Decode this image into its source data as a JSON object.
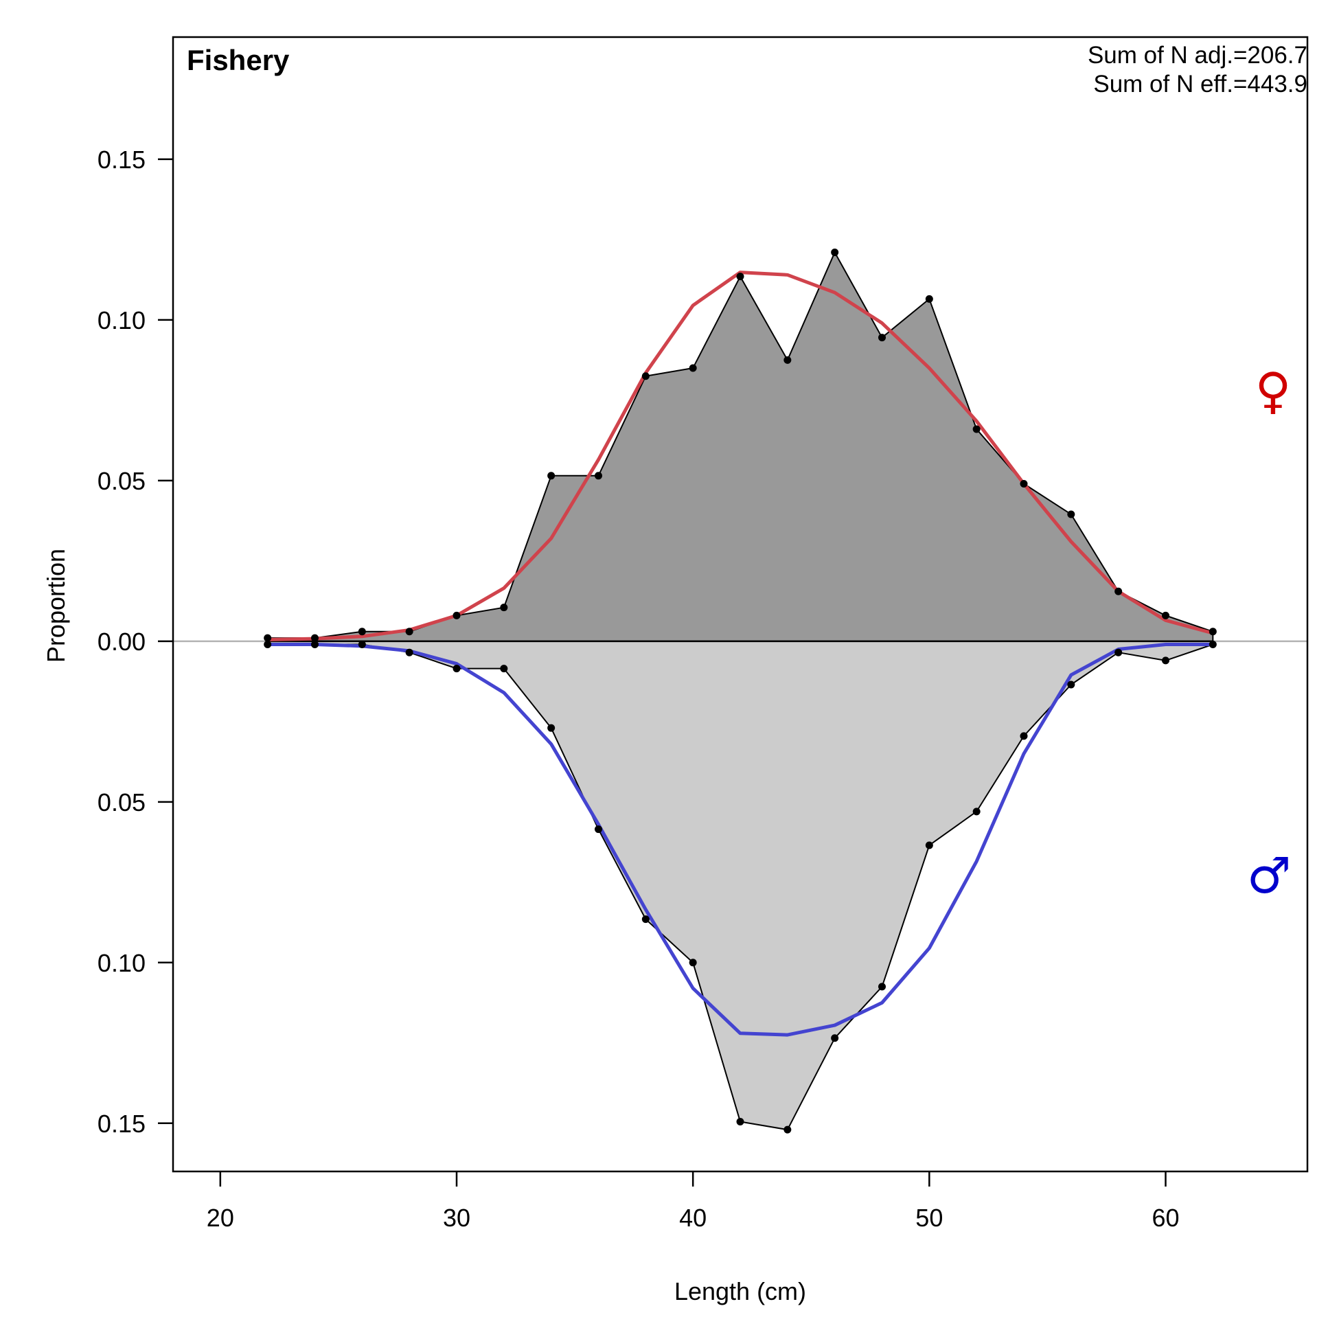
{
  "colors": {
    "female_fill": "#999999",
    "male_fill": "#cccccc",
    "female_expected": "#d0434c",
    "male_expected": "#4444d0",
    "zero_line": "#b3b3b3",
    "female_symbol": "#d00000",
    "male_symbol": "#0000cc"
  },
  "chart_data": {
    "type": "area",
    "title": "Fishery",
    "xlabel": "Length (cm)",
    "ylabel": "Proportion",
    "annotations": [
      "Sum of N adj.=206.7",
      "Sum of N eff.=443.9"
    ],
    "xlim": [
      18,
      66
    ],
    "ylim": [
      -0.165,
      0.188
    ],
    "x_ticks": [
      20,
      30,
      40,
      50,
      60
    ],
    "x_tick_labels": [
      "20",
      "30",
      "40",
      "50",
      "60"
    ],
    "y_ticks": [
      0.15,
      0.1,
      0.05,
      0.0,
      -0.05,
      -0.1,
      -0.15
    ],
    "y_tick_labels": [
      "0.15",
      "0.10",
      "0.05",
      "0.00",
      "0.05",
      "0.10",
      "0.15"
    ],
    "grid": false,
    "x": [
      22,
      24,
      26,
      28,
      30,
      32,
      34,
      36,
      38,
      40,
      42,
      44,
      46,
      48,
      50,
      52,
      54,
      56,
      58,
      60,
      62
    ],
    "series": [
      {
        "name": "♀",
        "observed": [
          0.001,
          0.001,
          0.003,
          0.003,
          0.008,
          0.0105,
          0.0515,
          0.0515,
          0.0825,
          0.085,
          0.1135,
          0.0875,
          0.121,
          0.0945,
          0.1065,
          0.066,
          0.049,
          0.0395,
          0.0155,
          0.008,
          0.003
        ],
        "expected": [
          0.0005,
          0.0008,
          0.0015,
          0.0035,
          0.008,
          0.0165,
          0.032,
          0.0565,
          0.0835,
          0.1045,
          0.1148,
          0.114,
          0.1085,
          0.099,
          0.085,
          0.0685,
          0.049,
          0.031,
          0.0155,
          0.0065,
          0.0025
        ]
      },
      {
        "name": "♂",
        "observed": [
          -0.001,
          -0.001,
          -0.001,
          -0.0035,
          -0.0085,
          -0.0085,
          -0.027,
          -0.0585,
          -0.0865,
          -0.1,
          -0.1495,
          -0.152,
          -0.1235,
          -0.1075,
          -0.0635,
          -0.053,
          -0.0295,
          -0.0135,
          -0.0035,
          -0.006,
          -0.001
        ],
        "expected": [
          -0.001,
          -0.001,
          -0.0015,
          -0.003,
          -0.007,
          -0.016,
          -0.032,
          -0.057,
          -0.0835,
          -0.108,
          -0.122,
          -0.1225,
          -0.1195,
          -0.1125,
          -0.0955,
          -0.0685,
          -0.035,
          -0.0105,
          -0.0025,
          -0.001,
          -0.001
        ]
      }
    ]
  }
}
